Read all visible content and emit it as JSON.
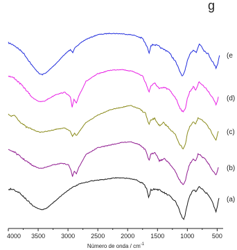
{
  "chart_data": {
    "type": "line",
    "title_fragment": "g",
    "xlabel": "Número de onda / cm",
    "xlabel_superscript": "-1",
    "x_axis": {
      "min": 400,
      "max": 4000,
      "reversed": true,
      "ticks": [
        4000,
        3500,
        3000,
        2500,
        2000,
        1500,
        1000,
        500
      ]
    },
    "y_axis": {
      "visible": false,
      "label": ""
    },
    "grid": false,
    "legend": "none",
    "series": [
      {
        "name": "(e",
        "color": "#1f2bdc",
        "y_offset": 4,
        "points": [
          [
            4000,
            0.78
          ],
          [
            3900,
            0.72
          ],
          [
            3750,
            0.55
          ],
          [
            3600,
            0.25
          ],
          [
            3480,
            0.06
          ],
          [
            3430,
            0.04
          ],
          [
            3350,
            0.1
          ],
          [
            3200,
            0.3
          ],
          [
            3050,
            0.52
          ],
          [
            2960,
            0.62
          ],
          [
            2920,
            0.55
          ],
          [
            2880,
            0.68
          ],
          [
            2700,
            0.86
          ],
          [
            2500,
            0.97
          ],
          [
            2300,
            1.0
          ],
          [
            2100,
            0.99
          ],
          [
            1900,
            0.96
          ],
          [
            1750,
            0.88
          ],
          [
            1680,
            0.7
          ],
          [
            1640,
            0.55
          ],
          [
            1610,
            0.72
          ],
          [
            1560,
            0.74
          ],
          [
            1480,
            0.7
          ],
          [
            1420,
            0.64
          ],
          [
            1320,
            0.58
          ],
          [
            1200,
            0.35
          ],
          [
            1120,
            0.1
          ],
          [
            1080,
            0.0
          ],
          [
            1040,
            0.12
          ],
          [
            1000,
            0.35
          ],
          [
            960,
            0.52
          ],
          [
            900,
            0.62
          ],
          [
            850,
            0.55
          ],
          [
            800,
            0.76
          ],
          [
            760,
            0.7
          ],
          [
            720,
            0.6
          ],
          [
            650,
            0.52
          ],
          [
            560,
            0.3
          ],
          [
            520,
            0.2
          ],
          [
            490,
            0.3
          ],
          [
            460,
            0.5
          ]
        ]
      },
      {
        "name": "(d)",
        "color": "#e81fe4",
        "y_offset": 3,
        "points": [
          [
            4000,
            0.85
          ],
          [
            3900,
            0.8
          ],
          [
            3750,
            0.6
          ],
          [
            3600,
            0.35
          ],
          [
            3480,
            0.25
          ],
          [
            3400,
            0.26
          ],
          [
            3300,
            0.34
          ],
          [
            3200,
            0.42
          ],
          [
            3050,
            0.47
          ],
          [
            2960,
            0.36
          ],
          [
            2930,
            0.12
          ],
          [
            2900,
            0.3
          ],
          [
            2860,
            0.22
          ],
          [
            2820,
            0.38
          ],
          [
            2700,
            0.72
          ],
          [
            2500,
            0.9
          ],
          [
            2300,
            0.98
          ],
          [
            2100,
            1.0
          ],
          [
            1900,
            0.95
          ],
          [
            1750,
            0.85
          ],
          [
            1680,
            0.62
          ],
          [
            1640,
            0.48
          ],
          [
            1610,
            0.62
          ],
          [
            1540,
            0.68
          ],
          [
            1470,
            0.55
          ],
          [
            1380,
            0.58
          ],
          [
            1300,
            0.52
          ],
          [
            1200,
            0.35
          ],
          [
            1120,
            0.1
          ],
          [
            1070,
            0.0
          ],
          [
            1030,
            0.12
          ],
          [
            1000,
            0.32
          ],
          [
            960,
            0.48
          ],
          [
            900,
            0.6
          ],
          [
            860,
            0.52
          ],
          [
            800,
            0.72
          ],
          [
            760,
            0.66
          ],
          [
            720,
            0.6
          ],
          [
            650,
            0.5
          ],
          [
            560,
            0.3
          ],
          [
            520,
            0.18
          ],
          [
            480,
            0.35
          ]
        ]
      },
      {
        "name": "(c)",
        "color": "#8a8a1a",
        "y_offset": 2,
        "points": [
          [
            4000,
            0.8
          ],
          [
            3950,
            0.74
          ],
          [
            3900,
            0.78
          ],
          [
            3800,
            0.62
          ],
          [
            3700,
            0.5
          ],
          [
            3600,
            0.45
          ],
          [
            3480,
            0.38
          ],
          [
            3350,
            0.4
          ],
          [
            3200,
            0.45
          ],
          [
            3050,
            0.48
          ],
          [
            2960,
            0.4
          ],
          [
            2925,
            0.28
          ],
          [
            2890,
            0.36
          ],
          [
            2860,
            0.3
          ],
          [
            2800,
            0.42
          ],
          [
            2700,
            0.6
          ],
          [
            2500,
            0.78
          ],
          [
            2300,
            0.9
          ],
          [
            2100,
            0.96
          ],
          [
            1950,
            1.0
          ],
          [
            1800,
            0.92
          ],
          [
            1700,
            0.82
          ],
          [
            1660,
            0.62
          ],
          [
            1640,
            0.56
          ],
          [
            1610,
            0.66
          ],
          [
            1550,
            0.7
          ],
          [
            1460,
            0.52
          ],
          [
            1400,
            0.6
          ],
          [
            1320,
            0.5
          ],
          [
            1200,
            0.32
          ],
          [
            1120,
            0.08
          ],
          [
            1070,
            0.0
          ],
          [
            1030,
            0.12
          ],
          [
            1000,
            0.35
          ],
          [
            960,
            0.5
          ],
          [
            900,
            0.62
          ],
          [
            860,
            0.56
          ],
          [
            820,
            0.72
          ],
          [
            760,
            0.68
          ],
          [
            720,
            0.62
          ],
          [
            650,
            0.5
          ],
          [
            560,
            0.3
          ],
          [
            520,
            0.2
          ],
          [
            480,
            0.4
          ]
        ]
      },
      {
        "name": "(b)",
        "color": "#8f1a8f",
        "y_offset": 1,
        "points": [
          [
            4000,
            0.82
          ],
          [
            3900,
            0.76
          ],
          [
            3750,
            0.6
          ],
          [
            3600,
            0.45
          ],
          [
            3480,
            0.38
          ],
          [
            3380,
            0.4
          ],
          [
            3250,
            0.46
          ],
          [
            3100,
            0.5
          ],
          [
            2990,
            0.46
          ],
          [
            2950,
            0.34
          ],
          [
            2925,
            0.18
          ],
          [
            2895,
            0.32
          ],
          [
            2860,
            0.26
          ],
          [
            2820,
            0.4
          ],
          [
            2700,
            0.7
          ],
          [
            2500,
            0.86
          ],
          [
            2300,
            0.92
          ],
          [
            2100,
            0.98
          ],
          [
            1950,
            1.0
          ],
          [
            1800,
            0.93
          ],
          [
            1700,
            0.8
          ],
          [
            1660,
            0.62
          ],
          [
            1640,
            0.58
          ],
          [
            1610,
            0.7
          ],
          [
            1540,
            0.76
          ],
          [
            1470,
            0.56
          ],
          [
            1380,
            0.6
          ],
          [
            1300,
            0.5
          ],
          [
            1200,
            0.3
          ],
          [
            1120,
            0.08
          ],
          [
            1070,
            0.0
          ],
          [
            1030,
            0.1
          ],
          [
            1000,
            0.3
          ],
          [
            960,
            0.48
          ],
          [
            900,
            0.6
          ],
          [
            860,
            0.54
          ],
          [
            820,
            0.72
          ],
          [
            760,
            0.66
          ],
          [
            720,
            0.62
          ],
          [
            650,
            0.5
          ],
          [
            560,
            0.3
          ],
          [
            520,
            0.22
          ],
          [
            480,
            0.4
          ]
        ]
      },
      {
        "name": "(a)",
        "color": "#151515",
        "y_offset": 0,
        "points": [
          [
            4000,
            0.73
          ],
          [
            3950,
            0.74
          ],
          [
            3900,
            0.72
          ],
          [
            3800,
            0.64
          ],
          [
            3700,
            0.5
          ],
          [
            3600,
            0.36
          ],
          [
            3500,
            0.28
          ],
          [
            3430,
            0.26
          ],
          [
            3350,
            0.3
          ],
          [
            3250,
            0.42
          ],
          [
            3100,
            0.6
          ],
          [
            2950,
            0.76
          ],
          [
            2800,
            0.86
          ],
          [
            2600,
            0.93
          ],
          [
            2400,
            0.96
          ],
          [
            2200,
            1.0
          ],
          [
            2000,
            0.99
          ],
          [
            1850,
            0.95
          ],
          [
            1750,
            0.87
          ],
          [
            1680,
            0.76
          ],
          [
            1650,
            0.55
          ],
          [
            1630,
            0.62
          ],
          [
            1610,
            0.72
          ],
          [
            1550,
            0.74
          ],
          [
            1480,
            0.72
          ],
          [
            1400,
            0.66
          ],
          [
            1300,
            0.58
          ],
          [
            1200,
            0.45
          ],
          [
            1150,
            0.3
          ],
          [
            1100,
            0.12
          ],
          [
            1080,
            0.06
          ],
          [
            1060,
            0.02
          ],
          [
            1040,
            0.12
          ],
          [
            1020,
            0.28
          ],
          [
            1000,
            0.38
          ],
          [
            980,
            0.48
          ],
          [
            950,
            0.6
          ],
          [
            900,
            0.72
          ],
          [
            850,
            0.68
          ],
          [
            800,
            0.8
          ],
          [
            760,
            0.75
          ],
          [
            720,
            0.68
          ],
          [
            650,
            0.62
          ],
          [
            580,
            0.45
          ],
          [
            540,
            0.28
          ],
          [
            520,
            0.2
          ],
          [
            500,
            0.32
          ],
          [
            470,
            0.52
          ]
        ]
      }
    ]
  }
}
